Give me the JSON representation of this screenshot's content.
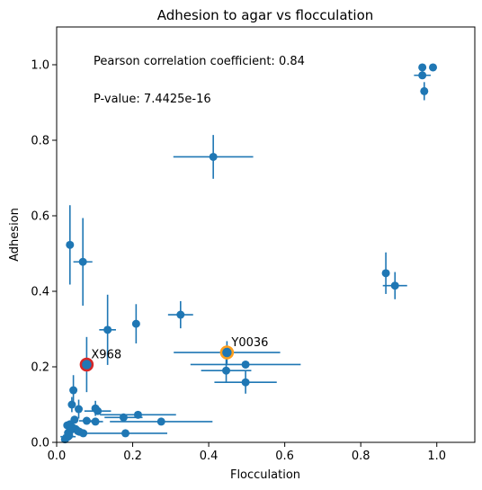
{
  "chart_data": {
    "type": "scatter",
    "title": "Adhesion to agar vs flocculation",
    "xlabel": "Flocculation",
    "ylabel": "Adhesion",
    "xlim": [
      0.0,
      1.1
    ],
    "ylim": [
      0.0,
      1.1
    ],
    "x_ticks": [
      "0.0",
      "0.2",
      "0.4",
      "0.6",
      "0.8",
      "1.0"
    ],
    "y_ticks": [
      "0.0",
      "0.2",
      "0.4",
      "0.6",
      "0.8",
      "1.0"
    ],
    "grid": false,
    "marker_color": "#1f77b4",
    "annotations": [
      {
        "text": "Pearson correlation coefficient: 0.84"
      },
      {
        "text": "P-value: 7.4425e-16"
      }
    ],
    "points": [
      {
        "x": 0.962,
        "y": 0.993
      },
      {
        "x": 0.99,
        "y": 0.993
      },
      {
        "x": 0.962,
        "y": 0.972,
        "xerr": 0.022
      },
      {
        "x": 0.967,
        "y": 0.93,
        "yerr": 0.024
      },
      {
        "x": 0.412,
        "y": 0.756,
        "xerr": 0.105,
        "yerr": 0.058
      },
      {
        "x": 0.035,
        "y": 0.523,
        "yerr": 0.105
      },
      {
        "x": 0.069,
        "y": 0.478,
        "xerr": 0.025,
        "yerr": 0.116
      },
      {
        "x": 0.866,
        "y": 0.448,
        "yerr": 0.055
      },
      {
        "x": 0.89,
        "y": 0.415,
        "xerr": 0.032,
        "yerr": 0.036
      },
      {
        "x": 0.326,
        "y": 0.338,
        "xerr": 0.033,
        "yerr": 0.036
      },
      {
        "x": 0.209,
        "y": 0.314,
        "yerr": 0.052
      },
      {
        "x": 0.134,
        "y": 0.298,
        "xerr": 0.022,
        "yerr": 0.093
      },
      {
        "x": 0.448,
        "y": 0.238,
        "xerr": 0.14,
        "yerr": 0.03
      },
      {
        "x": 0.497,
        "y": 0.206,
        "xerr": 0.145
      },
      {
        "x": 0.446,
        "y": 0.19,
        "xerr": 0.066,
        "yerr": 0.03
      },
      {
        "x": 0.497,
        "y": 0.159,
        "xerr": 0.082,
        "yerr": 0.03
      },
      {
        "x": 0.079,
        "y": 0.206,
        "yerr": 0.073
      },
      {
        "x": 0.044,
        "y": 0.138,
        "yerr": 0.04
      },
      {
        "x": 0.04,
        "y": 0.1,
        "yerr": 0.02
      },
      {
        "x": 0.058,
        "y": 0.088,
        "yerr": 0.025
      },
      {
        "x": 0.102,
        "y": 0.09,
        "yerr": 0.02
      },
      {
        "x": 0.108,
        "y": 0.083,
        "xerr": 0.035
      },
      {
        "x": 0.214,
        "y": 0.073,
        "xerr": 0.1
      },
      {
        "x": 0.176,
        "y": 0.066,
        "xerr": 0.05
      },
      {
        "x": 0.079,
        "y": 0.057,
        "xerr": 0.02
      },
      {
        "x": 0.102,
        "y": 0.055,
        "xerr": 0.02
      },
      {
        "x": 0.275,
        "y": 0.055,
        "xerr": 0.135
      },
      {
        "x": 0.047,
        "y": 0.06
      },
      {
        "x": 0.028,
        "y": 0.045
      },
      {
        "x": 0.035,
        "y": 0.048
      },
      {
        "x": 0.041,
        "y": 0.04
      },
      {
        "x": 0.05,
        "y": 0.035
      },
      {
        "x": 0.056,
        "y": 0.03
      },
      {
        "x": 0.06,
        "y": 0.028,
        "xerr": 0.02
      },
      {
        "x": 0.035,
        "y": 0.03
      },
      {
        "x": 0.03,
        "y": 0.025
      },
      {
        "x": 0.07,
        "y": 0.024
      },
      {
        "x": 0.181,
        "y": 0.024,
        "xerr": 0.11
      },
      {
        "x": 0.025,
        "y": 0.012
      },
      {
        "x": 0.03,
        "y": 0.015,
        "xerr": 0.02
      },
      {
        "x": 0.022,
        "y": 0.008
      },
      {
        "x": 0.033,
        "y": 0.018
      }
    ],
    "highlighted_points": [
      {
        "label": "X968",
        "x": 0.079,
        "y": 0.206,
        "color": "#d62728"
      },
      {
        "label": "Y0036",
        "x": 0.448,
        "y": 0.238,
        "color": "#ff9f1c"
      }
    ]
  }
}
